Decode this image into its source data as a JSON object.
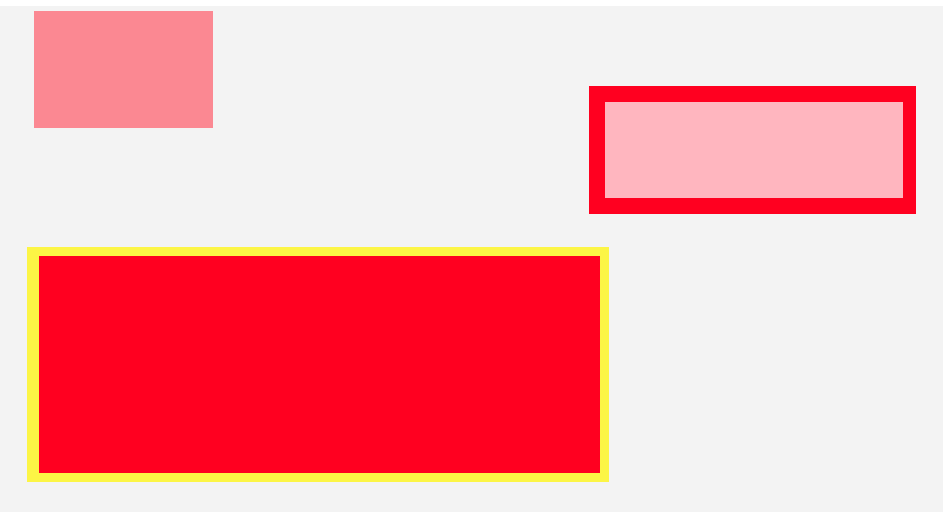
{
  "canvas": {
    "background_color": "#f3f3f3"
  },
  "shapes": [
    {
      "name": "pink-rectangle",
      "fill_color": "#fb8892",
      "border_color": null
    },
    {
      "name": "outlined-rectangle",
      "fill_color": "#ffb6bf",
      "border_color": "#ff0020"
    },
    {
      "name": "red-rectangle",
      "fill_color": "#ff0020",
      "border_color": "#fcf545"
    }
  ]
}
